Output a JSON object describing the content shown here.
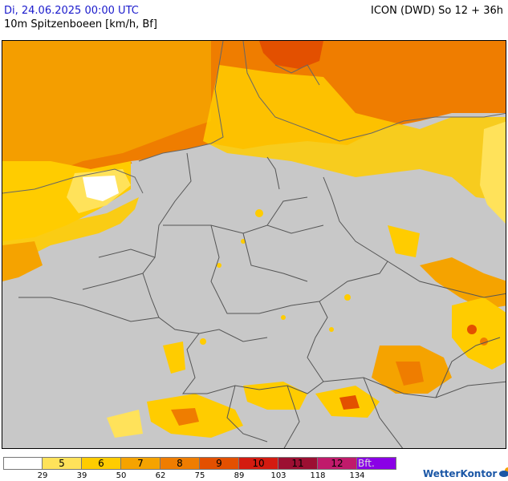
{
  "header": {
    "valid_time": "Di, 24.06.2025 00:00 UTC",
    "parameter": "10m Spitzenboeen [km/h, Bf]",
    "model_run": "ICON (DWD) So 12 + 36h"
  },
  "legend": {
    "classes": [
      {
        "label": "",
        "color": "#ffffff"
      },
      {
        "label": "5",
        "color": "#ffe25a"
      },
      {
        "label": "6",
        "color": "#ffcc00"
      },
      {
        "label": "7",
        "color": "#f5a300"
      },
      {
        "label": "8",
        "color": "#ef7d00"
      },
      {
        "label": "9",
        "color": "#e35000"
      },
      {
        "label": "10",
        "color": "#d41b10"
      },
      {
        "label": "11",
        "color": "#9c0f32"
      },
      {
        "label": "12",
        "color": "#c01a6b"
      },
      {
        "label": "Bft.",
        "color": "#8a00e6"
      }
    ],
    "kmh_ticks": [
      "29",
      "39",
      "50",
      "62",
      "75",
      "89",
      "103",
      "118",
      "134"
    ]
  },
  "map": {
    "land_no_data_color": "#c8c8c8",
    "border_color": "#555555"
  },
  "brand": {
    "name": "WetterKontor",
    "icon": "sun-cloud-icon"
  }
}
